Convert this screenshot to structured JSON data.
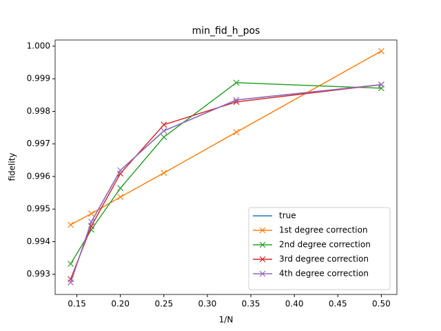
{
  "chart_data": {
    "type": "line",
    "title": "min_fid_h_pos",
    "xlabel": "1/N",
    "ylabel": "fidelity",
    "x": [
      0.142857,
      0.166667,
      0.2,
      0.25,
      0.333333,
      0.5
    ],
    "series": [
      {
        "name": "true",
        "color": "#1f77b4",
        "marker": "none",
        "values": [
          0.99275,
          0.99461,
          0.99619,
          0.9974,
          0.99835,
          0.99882
        ]
      },
      {
        "name": "1st degree correction",
        "color": "#ff7f0e",
        "marker": "x",
        "values": [
          0.99452,
          0.99486,
          0.99537,
          0.99611,
          0.99736,
          0.99985
        ]
      },
      {
        "name": "2nd degree correction",
        "color": "#2ca02c",
        "marker": "x",
        "values": [
          0.99332,
          0.99437,
          0.99564,
          0.99721,
          0.99888,
          0.99871
        ]
      },
      {
        "name": "3rd degree correction",
        "color": "#d62728",
        "marker": "x",
        "values": [
          0.99285,
          0.99448,
          0.99609,
          0.99759,
          0.99829,
          0.99882
        ]
      },
      {
        "name": "4th degree correction",
        "color": "#9467bd",
        "marker": "x",
        "values": [
          0.99275,
          0.99461,
          0.99619,
          0.9974,
          0.99835,
          0.99882
        ]
      }
    ],
    "xlim": [
      0.125,
      0.5179
    ],
    "xticks": [
      0.15,
      {
        "value": 0.2,
        "label": "0.20"
      },
      0.25,
      {
        "value": 0.3,
        "label": "0.30"
      },
      0.35,
      {
        "value": 0.4,
        "label": "0.40"
      },
      0.45,
      {
        "value": 0.5,
        "label": "0.50"
      }
    ],
    "ylim": [
      0.99238,
      1.00019
    ],
    "yticks": [
      0.993,
      0.994,
      0.995,
      0.996,
      0.997,
      0.998,
      0.999,
      {
        "value": 1.0,
        "label": "1.000"
      }
    ],
    "legend": "lower right"
  }
}
